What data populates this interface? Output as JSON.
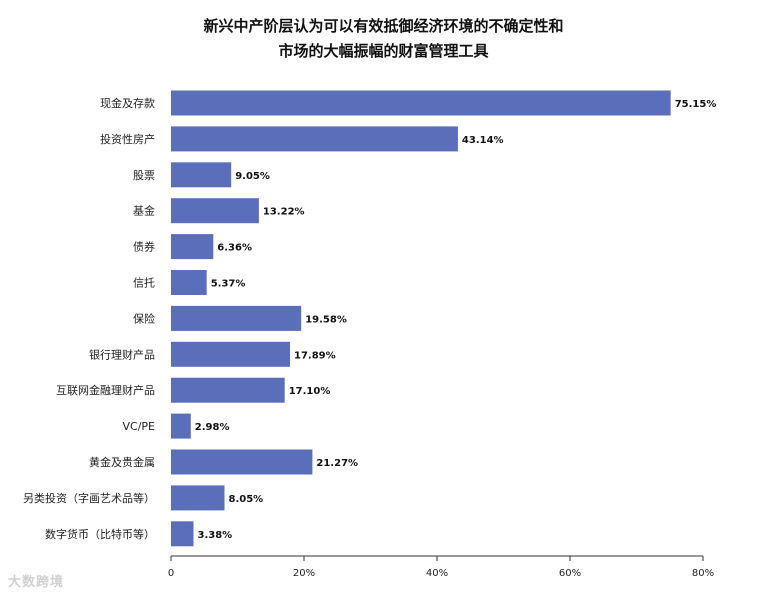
{
  "chart_data": {
    "type": "bar",
    "orientation": "horizontal",
    "title_lines": [
      "新兴中产阶层认为可以有效抵御经济环境的不确定性和",
      "市场的大幅振幅的财富管理工具"
    ],
    "categories": [
      "现金及存款",
      "投资性房产",
      "股票",
      "基金",
      "债券",
      "信托",
      "保险",
      "银行理财产品",
      "互联网金融理财产品",
      "VC/PE",
      "黄金及贵金属",
      "另类投资（字画艺术品等）",
      "数字货币（比特币等）"
    ],
    "values": [
      75.15,
      43.14,
      9.05,
      13.22,
      6.36,
      5.37,
      19.58,
      17.89,
      17.1,
      2.98,
      21.27,
      8.05,
      3.38
    ],
    "data_labels": [
      "75.15%",
      "43.14%",
      "9.05%",
      "13.22%",
      "6.36%",
      "5.37%",
      "19.58%",
      "17.89%",
      "17.10%",
      "2.98%",
      "21.27%",
      "8.05%",
      "3.38%"
    ],
    "xlim": [
      0,
      80
    ],
    "x_ticks": [
      0,
      20,
      40,
      60,
      80
    ],
    "x_tick_labels": [
      "0",
      "20%",
      "40%",
      "60%",
      "80%"
    ],
    "xlabel": "",
    "ylabel": "",
    "grid": false,
    "bar_color": "#5b6eb9"
  },
  "watermark_text": "大数跨境"
}
